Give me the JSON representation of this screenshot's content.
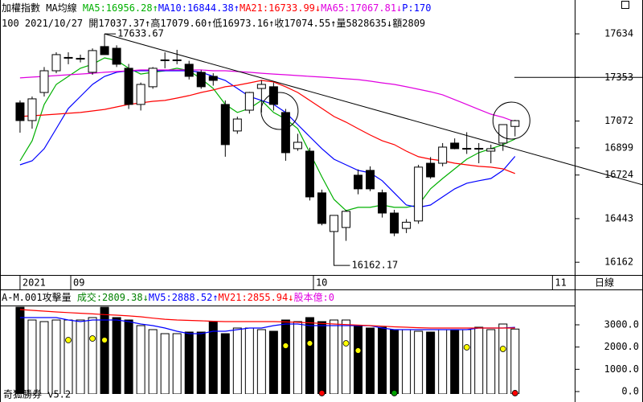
{
  "chart_data": [
    {
      "type": "candlestick",
      "header": [
        [
          {
            "text": "加權指數 MA均線 ",
            "color": "#000000"
          },
          {
            "text": "MA5:16956.28↑",
            "color": "#00b000"
          },
          {
            "text": "MA10:16844.38↑",
            "color": "#0000ff"
          },
          {
            "text": "MA21:16733.99↓",
            "color": "#ff0000"
          },
          {
            "text": "MA65:17067.81↓",
            "color": "#e000e0"
          },
          {
            "text": "P:170",
            "color": "#0000ff"
          }
        ],
        [
          {
            "text": "100 2021/10/27 開17037.37↑高17079.60↑低16973.16↑收17074.55↑量5828635↓額2809",
            "color": "#000000"
          }
        ]
      ],
      "period": "日線",
      "xlim": [
        -1.66,
        45.94
      ],
      "xticks": [
        {
          "value": 0,
          "label": "2021"
        },
        {
          "value": 4.2,
          "label": "09"
        },
        {
          "value": 24.3,
          "label": "10"
        },
        {
          "value": 44.1,
          "label": "11"
        }
      ],
      "ylim": [
        16080,
        17852
      ],
      "yticks": [
        16162,
        16443,
        16724,
        16899,
        17072,
        17353,
        17634
      ],
      "hline": 17353,
      "up_color": "#ffffff",
      "down_color": "#000000",
      "open": [
        17189,
        17075,
        17256,
        17396,
        17479,
        17474,
        17386,
        17552,
        17541,
        17412,
        17179,
        17293,
        17464,
        17464,
        17438,
        17386,
        17360,
        17179,
        17008,
        17142,
        17282,
        17293,
        17127,
        16894,
        16878,
        16609,
        16360,
        16386,
        16723,
        16754,
        16610,
        16479,
        16380,
        16428,
        16800,
        16800,
        16930,
        16894,
        16894,
        16878,
        16930,
        17037.37
      ],
      "high": [
        17205,
        17230,
        17420,
        17515,
        17515,
        17500,
        17540,
        17633.67,
        17560,
        17440,
        17320,
        17420,
        17515,
        17531,
        17460,
        17400,
        17380,
        17205,
        17100,
        17260,
        17334,
        17320,
        17150,
        16990,
        16900,
        16630,
        16464,
        16500,
        16760,
        16780,
        16630,
        16500,
        16440,
        16790,
        16840,
        16930,
        16960,
        17000,
        16930,
        16920,
        17049,
        17079.6
      ],
      "low": [
        16997,
        17023,
        17230,
        17380,
        17438,
        17450,
        17370,
        17500,
        17420,
        17150,
        17140,
        17280,
        17412,
        17438,
        17340,
        17280,
        17300,
        16842,
        16990,
        17120,
        17127,
        17140,
        16816,
        16880,
        16560,
        16400,
        16162.17,
        16300,
        16600,
        16620,
        16450,
        16330,
        16350,
        16410,
        16700,
        16780,
        16890,
        16860,
        16800,
        16800,
        16880,
        16973.16
      ],
      "close": [
        17075,
        17215,
        17396,
        17500,
        17482,
        17476,
        17526,
        17500,
        17438,
        17179,
        17308,
        17412,
        17466,
        17466,
        17360,
        17293,
        17334,
        16920,
        17085,
        17256,
        17308,
        17179,
        16868,
        16935,
        16583,
        16412,
        16464,
        16490,
        16635,
        16635,
        16479,
        16350,
        16420,
        16775,
        16712,
        16904,
        16894,
        16896,
        16896,
        16894,
        17049,
        17074.55
      ],
      "series": [
        {
          "name": "MA5",
          "color": "#00b000",
          "values": [
            16816,
            16945,
            17179,
            17308,
            17360,
            17412,
            17438,
            17479,
            17463,
            17412,
            17375,
            17386,
            17396,
            17412,
            17396,
            17344,
            17282,
            17179,
            17127,
            17153,
            17205,
            17127,
            17085,
            17023,
            16868,
            16712,
            16567,
            16495,
            16516,
            16516,
            16531,
            16516,
            16516,
            16531,
            16635,
            16702,
            16764,
            16826,
            16868,
            16894,
            16920,
            16956.28
          ]
        },
        {
          "name": "MA10",
          "color": "#0000ff",
          "values": [
            16790,
            16816,
            16894,
            17023,
            17153,
            17230,
            17308,
            17360,
            17386,
            17396,
            17396,
            17396,
            17396,
            17396,
            17396,
            17386,
            17360,
            17334,
            17282,
            17230,
            17205,
            17179,
            17127,
            17049,
            16971,
            16894,
            16826,
            16790,
            16754,
            16738,
            16687,
            16609,
            16531,
            16516,
            16531,
            16583,
            16635,
            16671,
            16687,
            16702,
            16754,
            16844.38
          ]
        },
        {
          "name": "MA21",
          "color": "#ff0000",
          "values": [
            17101,
            17106,
            17111,
            17116,
            17122,
            17127,
            17137,
            17147,
            17163,
            17179,
            17189,
            17199,
            17205,
            17220,
            17236,
            17256,
            17272,
            17293,
            17303,
            17318,
            17334,
            17324,
            17293,
            17256,
            17205,
            17153,
            17101,
            17065,
            17023,
            16982,
            16945,
            16920,
            16878,
            16842,
            16826,
            16816,
            16800,
            16790,
            16780,
            16775,
            16764,
            16733.99
          ]
        },
        {
          "name": "MA65",
          "color": "#e000e0",
          "values": [
            17350,
            17355,
            17360,
            17365,
            17370,
            17375,
            17380,
            17386,
            17391,
            17396,
            17401,
            17401,
            17401,
            17401,
            17401,
            17401,
            17396,
            17396,
            17391,
            17386,
            17380,
            17375,
            17370,
            17365,
            17360,
            17355,
            17350,
            17344,
            17339,
            17329,
            17318,
            17308,
            17293,
            17277,
            17261,
            17241,
            17210,
            17179,
            17147,
            17116,
            17096,
            17067.81
          ]
        }
      ],
      "trendline": {
        "start": [
          7,
          17633.67
        ],
        "end": [
          51.6,
          16660
        ]
      },
      "highlights": [
        {
          "x": 21.5,
          "y": 17137
        },
        {
          "x": 40.7,
          "y": 17075
        }
      ],
      "annotations": [
        {
          "x": 7,
          "value": 17633.67
        },
        {
          "x": 26,
          "value": 16162.17
        }
      ]
    },
    {
      "type": "volume",
      "header": [
        {
          "text": "A-M.001攻擊量 ",
          "color": "#000000"
        },
        {
          "text": "成交:2809.38↓",
          "color": "#008000"
        },
        {
          "text": "MV5:2888.52↑",
          "color": "#0000ff"
        },
        {
          "text": "MV21:2855.94↓",
          "color": "#ff0000"
        },
        {
          "text": "股本億:0",
          "color": "#e000e0"
        }
      ],
      "footer": "奇狐勝券 v5.2",
      "ylim": [
        -108,
        3867
      ],
      "yticks": [
        {
          "value": 0,
          "label": "0.0"
        },
        {
          "value": 1000,
          "label": "1000.0"
        },
        {
          "value": 2000,
          "label": "2000.0"
        },
        {
          "value": 3000,
          "label": "3000.0"
        }
      ],
      "values": [
        3790,
        3216,
        3144,
        3216,
        3216,
        3216,
        3325,
        3790,
        3325,
        3216,
        2964,
        2783,
        2602,
        2602,
        2674,
        2674,
        3144,
        2602,
        2855,
        2855,
        2783,
        2711,
        3216,
        3144,
        3325,
        3144,
        3216,
        3216,
        2964,
        2855,
        2891,
        2783,
        2783,
        2711,
        2674,
        2783,
        2783,
        2783,
        2891,
        2783,
        3036,
        2809.38
      ],
      "series": [
        {
          "name": "MV5",
          "color": "#0000ff",
          "values": [
            3325,
            3325,
            3325,
            3325,
            3216,
            3144,
            3216,
            3216,
            3216,
            3144,
            3036,
            2964,
            2855,
            2711,
            2602,
            2602,
            2711,
            2711,
            2783,
            2855,
            2855,
            2964,
            3036,
            3036,
            2964,
            2964,
            2964,
            2964,
            2964,
            2964,
            2855,
            2783,
            2783,
            2783,
            2783,
            2783,
            2783,
            2783,
            2855,
            2855,
            2855,
            2888.52
          ]
        },
        {
          "name": "MV21",
          "color": "#ff0000",
          "values": [
            3686,
            3650,
            3614,
            3578,
            3550,
            3520,
            3490,
            3460,
            3433,
            3400,
            3360,
            3300,
            3250,
            3216,
            3200,
            3180,
            3160,
            3144,
            3144,
            3144,
            3144,
            3144,
            3130,
            3110,
            3090,
            3060,
            3036,
            3010,
            2990,
            2964,
            2940,
            2910,
            2890,
            2870,
            2855,
            2855,
            2855,
            2855,
            2855,
            2855,
            2855,
            2855.94
          ]
        }
      ],
      "markers": [
        {
          "index": 4,
          "value": 2313,
          "color": "#ffff00"
        },
        {
          "index": 6,
          "value": 2385,
          "color": "#ffff00"
        },
        {
          "index": 7,
          "value": 2313,
          "color": "#ffff00"
        },
        {
          "index": 22,
          "value": 2060,
          "color": "#ffff00"
        },
        {
          "index": 24,
          "value": 2168,
          "color": "#ffff00"
        },
        {
          "index": 27,
          "value": 2168,
          "color": "#ffff00"
        },
        {
          "index": 28,
          "value": 1843,
          "color": "#ffff00"
        },
        {
          "index": 37,
          "value": 1988,
          "color": "#ffff00"
        },
        {
          "index": 40,
          "value": 1916,
          "color": "#ffff00"
        },
        {
          "index": 25,
          "value": -70,
          "color": "#ff0000"
        },
        {
          "index": 31,
          "value": -70,
          "color": "#00a000"
        },
        {
          "index": 41,
          "value": -70,
          "color": "#ff0000"
        }
      ]
    }
  ]
}
